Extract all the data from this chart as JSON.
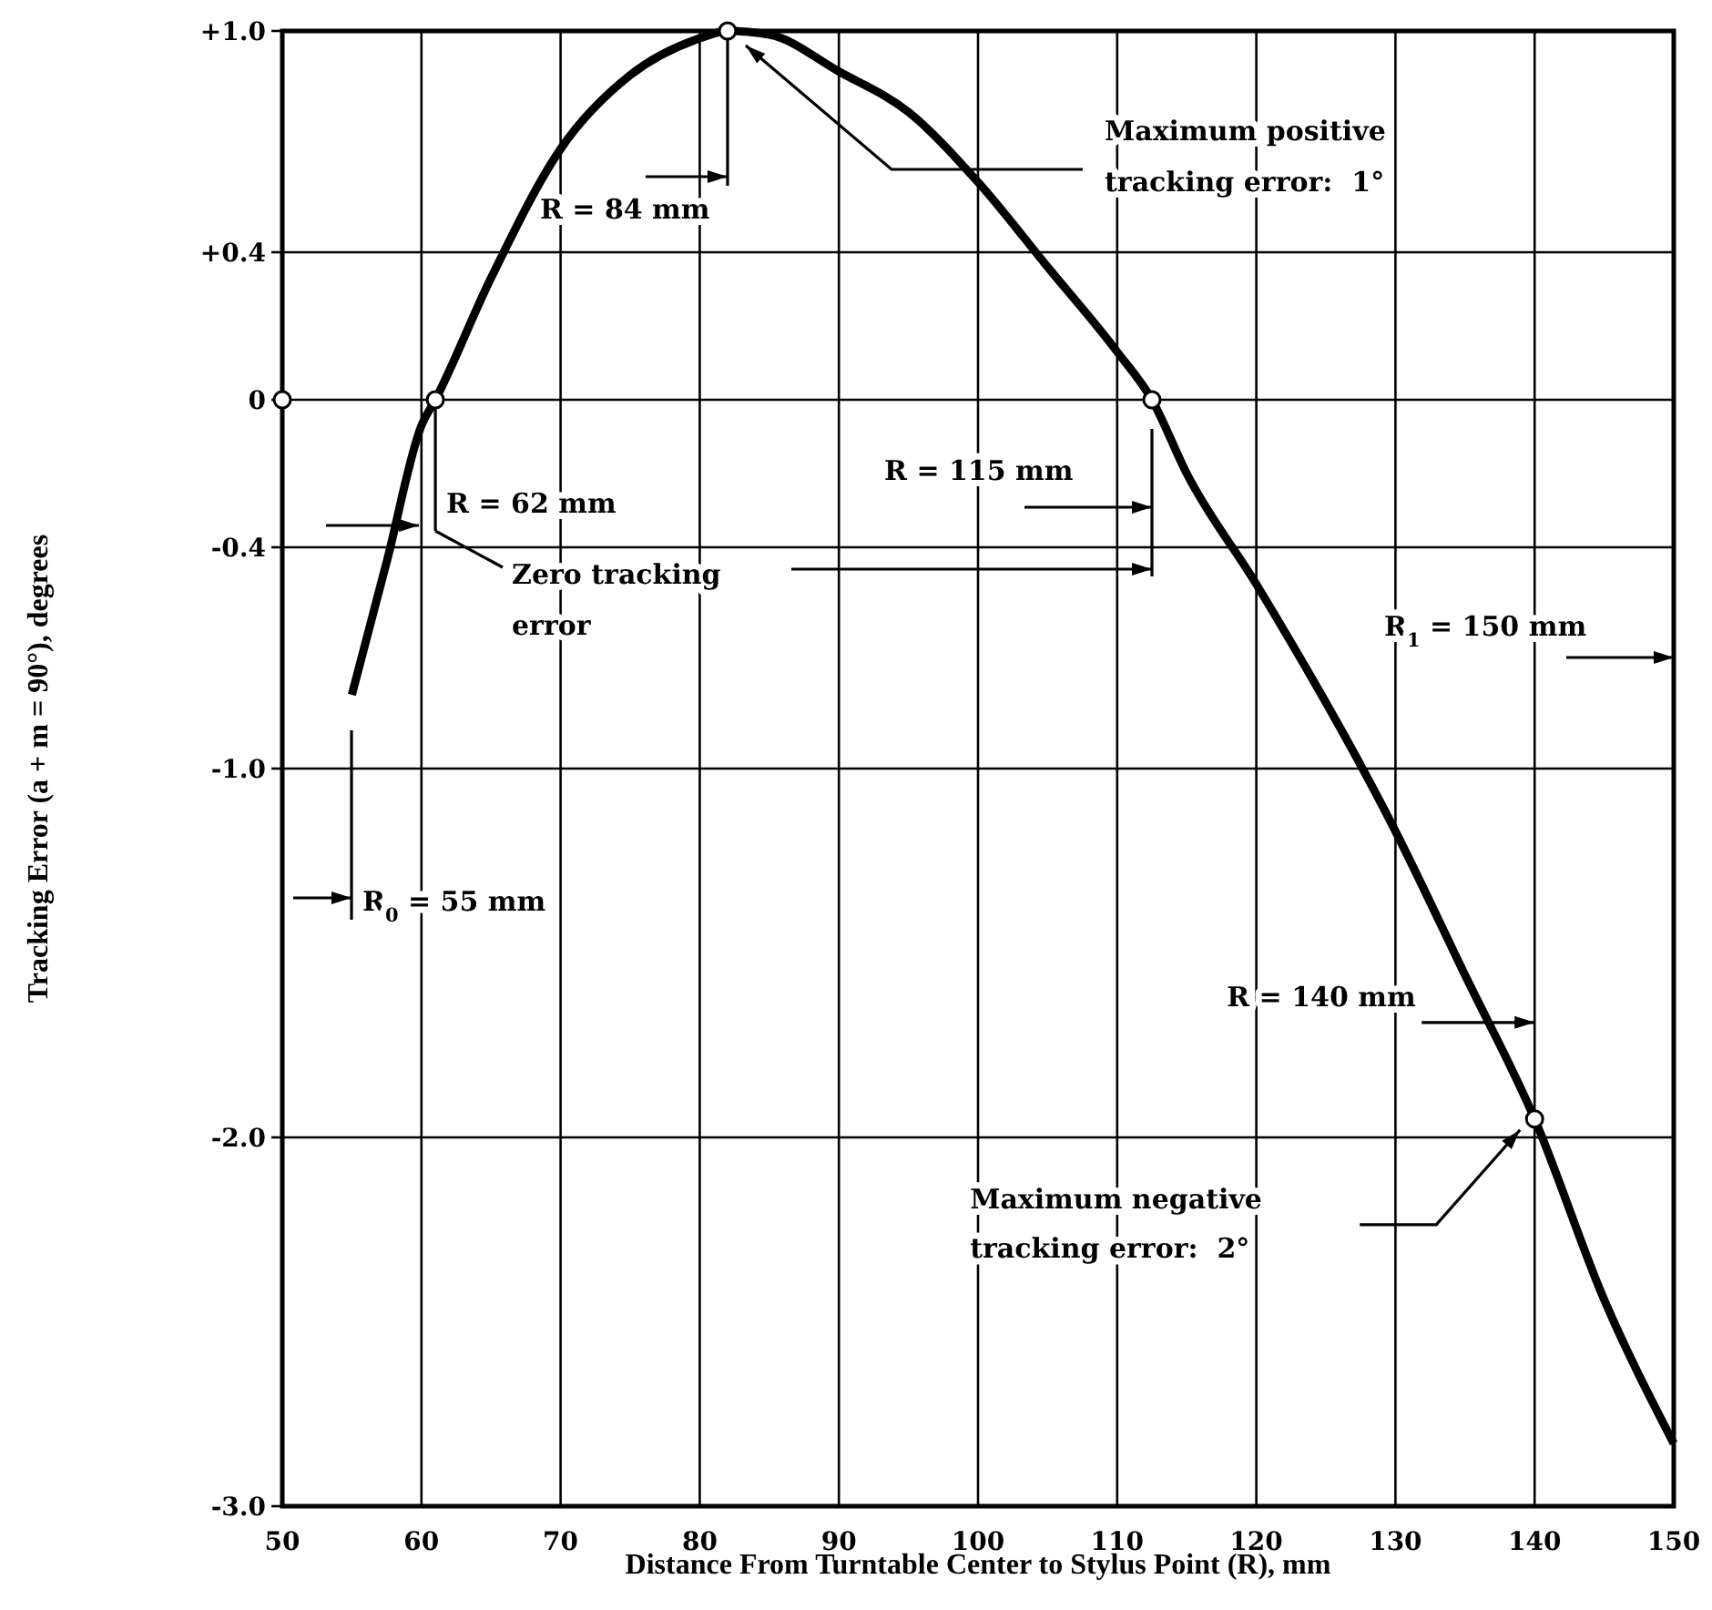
{
  "chart_data": {
    "type": "line",
    "xlabel": "Distance From Turntable Center to Stylus Point (R), mm",
    "ylabel": "Tracking Error (a + m = 90°), degrees",
    "xlim": [
      50,
      150
    ],
    "xticks": [
      50,
      60,
      70,
      80,
      90,
      100,
      110,
      120,
      130,
      140,
      150
    ],
    "ylim": [
      -3,
      1
    ],
    "yticks": [
      {
        "value": 1,
        "label": "+1.0"
      },
      {
        "value": 0.4,
        "label": "+0.4"
      },
      0,
      {
        "value": -0.4,
        "label": "-0.4"
      },
      {
        "value": -1,
        "label": "-1.0"
      },
      {
        "value": -2,
        "label": "-2.0"
      },
      {
        "value": -3,
        "label": "-3.0"
      }
    ],
    "grid": true,
    "series": [
      {
        "color": "#000000",
        "x": [
          55,
          57.5,
          60,
          61,
          65,
          70,
          75,
          80,
          82,
          85,
          90,
          95,
          100,
          105,
          110,
          112.5,
          115,
          120,
          130,
          135,
          140,
          145,
          150
        ],
        "values": [
          -0.8,
          -0.44,
          -0.07,
          0,
          0.33,
          0.68,
          0.88,
          0.98,
          1,
          0.99,
          0.89,
          0.78,
          0.59,
          0.36,
          0.13,
          0,
          -0.2,
          -0.5,
          -1.17,
          -1.56,
          -1.95,
          -2.44,
          -2.83
        ]
      },
      {
        "type": "scatter",
        "color": "#000000",
        "marker": "circle",
        "x": [
          50,
          61,
          82,
          112.5,
          140
        ],
        "values": [
          0,
          0,
          1,
          0,
          -1.95
        ]
      }
    ],
    "annotations": [
      {
        "text": "R = 84 mm",
        "x": 82,
        "y": 1
      },
      "Maximum positive\ntracking error:  1°",
      {
        "text": "R = 62 mm",
        "x": 61,
        "y": 0
      },
      "Zero tracking\nerror",
      "R = 115 mm",
      "R$_{1}$ = 150 mm",
      "R$_{0}$ = 55 mm",
      "R = 140 mm",
      "Maximum negative\ntracking error:  2°"
    ]
  }
}
